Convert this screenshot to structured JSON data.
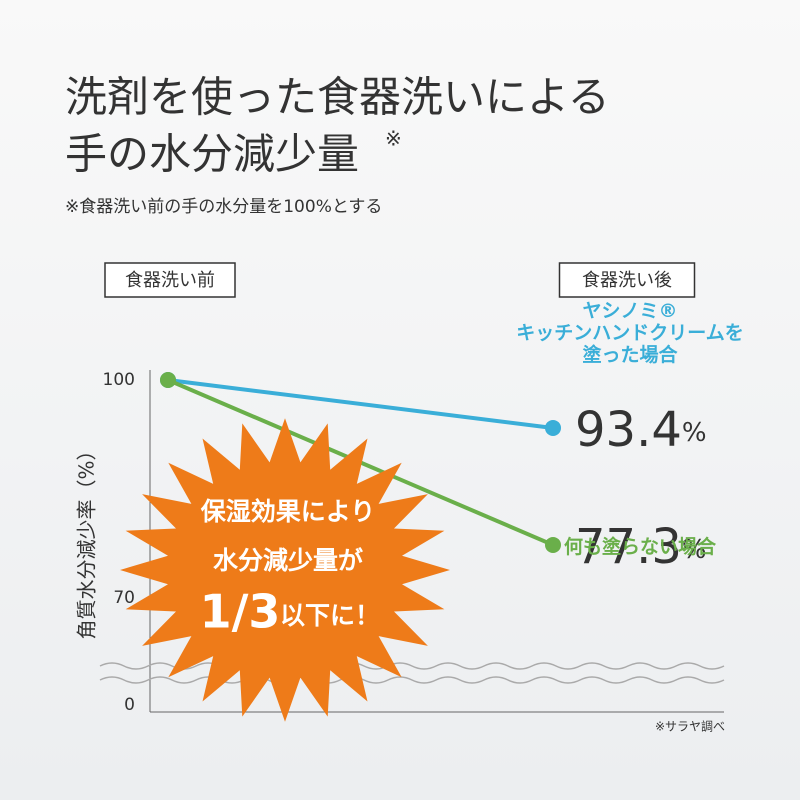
{
  "chart_data": {
    "type": "line",
    "title": [
      "洗剤を使った食器洗いによる",
      "手の水分減少量"
    ],
    "title_mark": "※",
    "subtitle": "※食器洗い前の手の水分量を100%とする",
    "categories": [
      "食器洗い前",
      "食器洗い後"
    ],
    "y_label": "角質水分減少率（%）",
    "ylim": [
      0,
      100
    ],
    "ybreak": [
      0,
      70
    ],
    "yticks": [
      0,
      70,
      100
    ],
    "series": [
      {
        "name": "ヤシノミ®\nキッチンハンドクリームを\n塗った場合",
        "color": "#3aaed8",
        "values": [
          100,
          93.4
        ],
        "value_labels": [
          null,
          "93.4%"
        ]
      },
      {
        "name": "何も塗らない場合",
        "color": "#6aaf4a",
        "values": [
          100,
          77.3
        ],
        "value_labels": [
          null,
          "77.3%"
        ]
      }
    ],
    "callout": [
      "保湿効果により",
      "水分減少量が",
      "1/3",
      "以下に！"
    ],
    "source": "※サラヤ調べ"
  }
}
